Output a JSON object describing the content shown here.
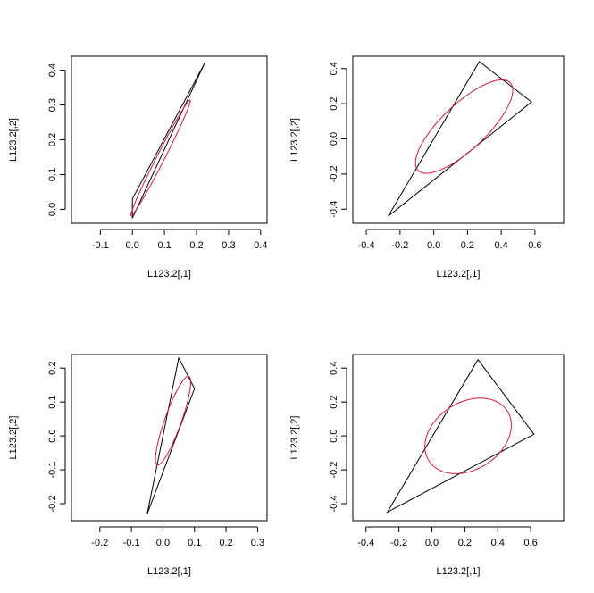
{
  "chart_data": [
    {
      "type": "scatter",
      "title": "",
      "xlabel": "L123.2[,1]",
      "ylabel": "L123.2[,2]",
      "xlim": [
        -0.19,
        0.42
      ],
      "ylim": [
        -0.04,
        0.44
      ],
      "xticks": [
        "-0.1",
        "0.0",
        "0.1",
        "0.2",
        "0.3",
        "0.4"
      ],
      "yticks": [
        "0.0",
        "0.1",
        "0.2",
        "0.3",
        "0.4"
      ],
      "xtick_values": [
        -0.1,
        0.0,
        0.1,
        0.2,
        0.3,
        0.4
      ],
      "ytick_values": [
        0.0,
        0.1,
        0.2,
        0.3,
        0.4
      ],
      "triangle": [
        [
          0.0,
          0.03
        ],
        [
          0.225,
          0.42
        ],
        [
          0.0,
          -0.025
        ]
      ],
      "ellipse": {
        "cx": 0.088,
        "cy": 0.148,
        "rx": 0.19,
        "ry": 0.012,
        "angle_deg": 61,
        "color": "#cc1f3a"
      },
      "line_color": "#000000"
    },
    {
      "type": "scatter",
      "title": "",
      "xlabel": "L123.2[,1]",
      "ylabel": "L123.2[,2]",
      "xlim": [
        -0.48,
        0.77
      ],
      "ylim": [
        -0.48,
        0.47
      ],
      "xticks": [
        "-0.4",
        "-0.2",
        "0.0",
        "0.2",
        "0.4",
        "0.6"
      ],
      "yticks": [
        "-0.4",
        "-0.2",
        "0.0",
        "0.2",
        "0.4"
      ],
      "xtick_values": [
        -0.4,
        -0.2,
        0.0,
        0.2,
        0.4,
        0.6
      ],
      "ytick_values": [
        -0.4,
        -0.2,
        0.0,
        0.2,
        0.4
      ],
      "triangle": [
        [
          0.27,
          0.44
        ],
        [
          0.58,
          0.21
        ],
        [
          -0.27,
          -0.44
        ]
      ],
      "ellipse": {
        "cx": 0.18,
        "cy": 0.07,
        "rx": 0.37,
        "ry": 0.13,
        "angle_deg": 42,
        "color": "#cc1f3a"
      },
      "line_color": "#000000"
    },
    {
      "type": "scatter",
      "title": "",
      "xlabel": "L123.2[,1]",
      "ylabel": "L123.2[,2]",
      "xlim": [
        -0.29,
        0.33
      ],
      "ylim": [
        -0.25,
        0.24
      ],
      "xticks": [
        "-0.2",
        "-0.1",
        "0.0",
        "0.1",
        "0.2",
        "0.3"
      ],
      "yticks": [
        "-0.2",
        "-0.1",
        "0.0",
        "0.1",
        "0.2"
      ],
      "xtick_values": [
        -0.2,
        -0.1,
        0.0,
        0.1,
        0.2,
        0.3
      ],
      "ytick_values": [
        -0.2,
        -0.1,
        0.0,
        0.1,
        0.2
      ],
      "triangle": [
        [
          0.05,
          0.23
        ],
        [
          0.1,
          0.14
        ],
        [
          -0.05,
          -0.23
        ]
      ],
      "ellipse": {
        "cx": 0.032,
        "cy": 0.045,
        "rx": 0.14,
        "ry": 0.026,
        "angle_deg": 69,
        "color": "#cc1f3a"
      },
      "line_color": "#000000"
    },
    {
      "type": "scatter",
      "title": "",
      "xlabel": "L123.2[,1]",
      "ylabel": "L123.2[,2]",
      "xlim": [
        -0.48,
        0.8
      ],
      "ylim": [
        -0.5,
        0.48
      ],
      "xticks": [
        "-0.4",
        "-0.2",
        "0.0",
        "0.2",
        "0.4",
        "0.6"
      ],
      "yticks": [
        "-0.4",
        "-0.2",
        "0.0",
        "0.2",
        "0.4"
      ],
      "xtick_values": [
        -0.4,
        -0.2,
        0.0,
        0.2,
        0.4,
        0.6
      ],
      "ytick_values": [
        -0.4,
        -0.2,
        0.0,
        0.2,
        0.4
      ],
      "triangle": [
        [
          0.28,
          0.45
        ],
        [
          0.62,
          0.01
        ],
        [
          -0.27,
          -0.45
        ]
      ],
      "ellipse": {
        "cx": 0.22,
        "cy": 0.0,
        "rx": 0.28,
        "ry": 0.2,
        "angle_deg": 30,
        "color": "#cc1f3a"
      },
      "line_color": "#000000"
    }
  ]
}
